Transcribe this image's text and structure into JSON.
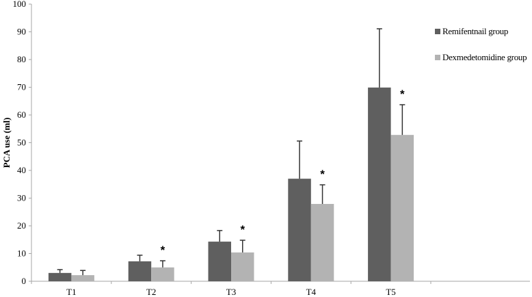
{
  "chart_data": {
    "type": "bar",
    "title": "",
    "xlabel": "",
    "ylabel": "PCA use (ml)",
    "ylim": [
      0,
      100
    ],
    "yticks": [
      0,
      10,
      20,
      30,
      40,
      50,
      60,
      70,
      80,
      90,
      100
    ],
    "grid": false,
    "legend_position": "right",
    "categories": [
      "T1",
      "T2",
      "T3",
      "T4",
      "T5"
    ],
    "series": [
      {
        "name": "Remifentnail group",
        "color": "#5f5f5f",
        "values": [
          3.0,
          7.2,
          14.3,
          37.0,
          69.9
        ],
        "error_upper": [
          4.2,
          9.4,
          18.3,
          50.6,
          91.1
        ]
      },
      {
        "name": "Dexmedetomidine group",
        "color": "#b3b3b3",
        "values": [
          2.2,
          5.0,
          10.4,
          27.9,
          52.8
        ],
        "error_upper": [
          3.9,
          7.4,
          14.8,
          34.8,
          63.7
        ]
      }
    ],
    "annotations": [
      {
        "category": "T2",
        "series": "Dexmedetomidine group",
        "text": "*"
      },
      {
        "category": "T3",
        "series": "Dexmedetomidine group",
        "text": "*"
      },
      {
        "category": "T4",
        "series": "Dexmedetomidine group",
        "text": "*"
      },
      {
        "category": "T5",
        "series": "Dexmedetomidine group",
        "text": "*"
      }
    ]
  },
  "legend": {
    "items": [
      {
        "label": "Remifentnail group",
        "color": "#5f5f5f"
      },
      {
        "label": "Dexmedetomidine group",
        "color": "#b3b3b3"
      }
    ]
  },
  "axis": {
    "ylabel": "PCA use (ml)"
  }
}
